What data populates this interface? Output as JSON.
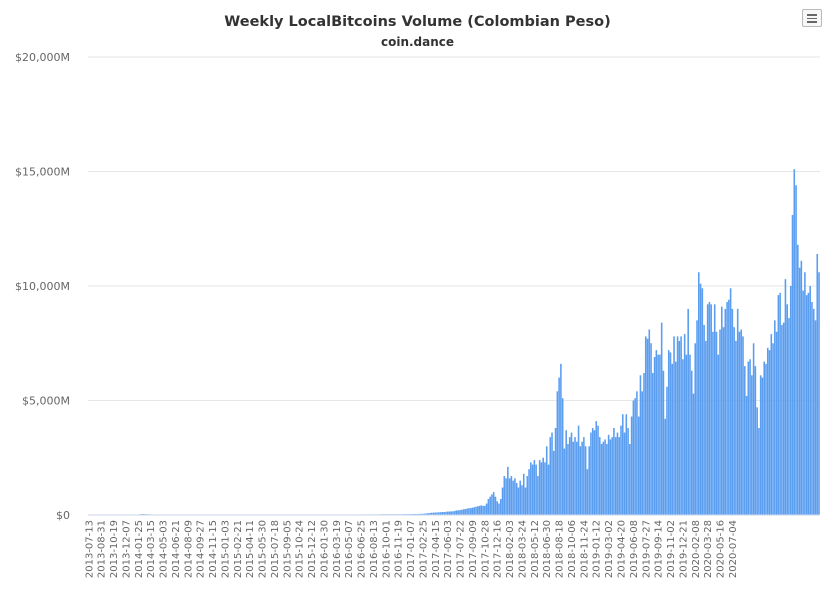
{
  "chart_data": {
    "type": "bar",
    "title": "Weekly LocalBitcoins Volume (Colombian Peso)",
    "subtitle": "coin.dance",
    "ylim": [
      0,
      20000
    ],
    "y_ticks": [
      "$0",
      "$5,000M",
      "$10,000M",
      "$15,000M",
      "$20,000M"
    ],
    "y_tick_values": [
      0,
      5000,
      10000,
      15000,
      20000
    ],
    "x_tick_labels": [
      "2013-07-13",
      "2013-08-31",
      "2013-10-19",
      "2013-12-07",
      "2014-01-25",
      "2014-03-15",
      "2014-05-03",
      "2014-06-21",
      "2014-08-09",
      "2014-09-27",
      "2014-11-15",
      "2015-01-03",
      "2015-02-21",
      "2015-04-11",
      "2015-05-30",
      "2015-07-18",
      "2015-09-05",
      "2015-10-24",
      "2015-12-12",
      "2016-01-30",
      "2016-03-19",
      "2016-05-07",
      "2016-06-25",
      "2016-08-13",
      "2016-10-01",
      "2016-11-19",
      "2017-01-07",
      "2017-02-25",
      "2017-04-15",
      "2017-06-03",
      "2017-07-22",
      "2017-09-09",
      "2017-10-28",
      "2017-12-16",
      "2018-02-03",
      "2018-03-24",
      "2018-05-12",
      "2018-06-30",
      "2018-08-18",
      "2018-10-06",
      "2018-11-24",
      "2019-01-12",
      "2019-03-02",
      "2019-04-20",
      "2019-06-08",
      "2019-07-27",
      "2019-09-14",
      "2019-11-02",
      "2019-12-21",
      "2020-02-08",
      "2020-03-28",
      "2020-05-16",
      "2020-07-04"
    ],
    "grid": true,
    "legend": "none",
    "color": "#5b9ef0",
    "x_start": "2013-07-13",
    "x_step": "1 week",
    "values": [
      0,
      0,
      0,
      0,
      0,
      0,
      0,
      0,
      0,
      0,
      0,
      0,
      0,
      0,
      0,
      0,
      0,
      0,
      0,
      0,
      0,
      0,
      0,
      0,
      0,
      5,
      10,
      15,
      20,
      30,
      40,
      40,
      35,
      30,
      30,
      25,
      25,
      20,
      20,
      18,
      15,
      15,
      12,
      12,
      10,
      10,
      10,
      10,
      10,
      10,
      10,
      10,
      10,
      10,
      10,
      10,
      10,
      10,
      10,
      10,
      10,
      10,
      10,
      10,
      10,
      10,
      10,
      10,
      10,
      10,
      10,
      10,
      10,
      10,
      10,
      10,
      10,
      10,
      10,
      10,
      10,
      10,
      12,
      12,
      12,
      12,
      12,
      12,
      12,
      12,
      12,
      12,
      12,
      12,
      12,
      12,
      15,
      15,
      15,
      15,
      15,
      15,
      15,
      15,
      15,
      15,
      15,
      15,
      15,
      15,
      15,
      15,
      15,
      15,
      15,
      15,
      15,
      15,
      15,
      15,
      15,
      15,
      15,
      15,
      15,
      15,
      15,
      15,
      15,
      15,
      15,
      15,
      15,
      15,
      15,
      15,
      15,
      20,
      20,
      20,
      20,
      20,
      20,
      20,
      20,
      20,
      20,
      20,
      20,
      20,
      20,
      20,
      20,
      25,
      25,
      25,
      25,
      25,
      25,
      25,
      25,
      25,
      25,
      25,
      25,
      30,
      30,
      30,
      30,
      30,
      30,
      30,
      30,
      30,
      30,
      30,
      30,
      30,
      35,
      35,
      35,
      35,
      35,
      40,
      40,
      40,
      40,
      50,
      50,
      55,
      60,
      70,
      80,
      90,
      100,
      100,
      110,
      110,
      120,
      120,
      130,
      130,
      140,
      150,
      150,
      160,
      160,
      180,
      200,
      200,
      220,
      230,
      250,
      260,
      280,
      300,
      300,
      320,
      340,
      360,
      380,
      400,
      420,
      400,
      400,
      500,
      700,
      800,
      900,
      1000,
      800,
      600,
      500,
      700,
      1200,
      1700,
      1600,
      2100,
      1600,
      1700,
      1500,
      1600,
      1400,
      1200,
      1500,
      1300,
      1800,
      1200,
      1700,
      2000,
      2300,
      2200,
      2400,
      2200,
      1700,
      2400,
      2300,
      2500,
      2300,
      3000,
      2200,
      3400,
      3600,
      2800,
      3800,
      5400,
      6000,
      6600,
      5100,
      2900,
      3700,
      3100,
      3400,
      3600,
      3200,
      3400,
      3200,
      3900,
      3000,
      3200,
      3400,
      3000,
      2000,
      3000,
      3600,
      3800,
      3700,
      4100,
      3900,
      3400,
      3100,
      3200,
      3300,
      3100,
      3500,
      3300,
      3400,
      3800,
      3400,
      3600,
      3400,
      3900,
      4400,
      3600,
      4400,
      3800,
      3100,
      4300,
      5000,
      5100,
      5400,
      4300,
      6100,
      5400,
      6200,
      7800,
      7700,
      8100,
      7500,
      6200,
      6900,
      7200,
      7000,
      7000,
      8400,
      6300,
      4200,
      5600,
      7200,
      7100,
      6600,
      7800,
      6700,
      7800,
      7600,
      7800,
      6800,
      7900,
      7000,
      9000,
      7000,
      6300,
      5300,
      7500,
      8500,
      10600,
      10100,
      9900,
      8300,
      7600,
      9200,
      9300,
      9200,
      8000,
      9200,
      8000,
      7000,
      8100,
      9100,
      8200,
      9000,
      9300,
      9400,
      9900,
      9000,
      8200,
      7600,
      9000,
      8000,
      8100,
      7800,
      6500,
      5200,
      6700,
      6800,
      6100,
      7500,
      6500,
      4700,
      3800,
      6100,
      6000,
      6700,
      6600,
      7300,
      7200,
      7900,
      7500,
      8500,
      8000,
      9600,
      9700,
      8300,
      8400,
      10300,
      9200,
      8600,
      10000,
      13100,
      15100,
      14400,
      11800,
      10800,
      11100,
      9800,
      10600,
      9600,
      9700,
      10000,
      9300,
      9000,
      8500,
      11400,
      10600
    ]
  }
}
